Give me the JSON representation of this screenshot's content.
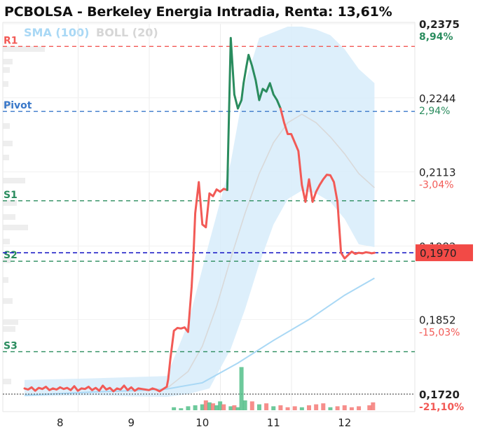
{
  "title": "PCBOLSA - Berkeley Energia Intradia, Renta: 13,61%",
  "legend": {
    "sma": "SMA (100)",
    "boll": "BOLL (20)"
  },
  "colors": {
    "up": "#2a8c5e",
    "down": "#f25a56",
    "sma": "#a9d8f5",
    "band": "#d7ecfa",
    "boll_mid": "#d9d9d9",
    "pivot": "#3a78c9",
    "current": "#2323c8"
  },
  "chart_data": {
    "type": "line",
    "title": "PCBOLSA - Berkeley Energia Intradia, Renta: 13,61%",
    "xlabel": "",
    "ylabel": "",
    "ylim": [
      0.1715,
      0.2375
    ],
    "x_ticks": [
      "8",
      "9",
      "10",
      "11",
      "12"
    ],
    "y_ticks": [
      {
        "value": 0.2375,
        "label": "0,2375",
        "pct": "8,94%",
        "pct_color": "up",
        "bold": true
      },
      {
        "value": 0.2244,
        "label": "0,2244",
        "pct": "2,94%",
        "pct_color": "up"
      },
      {
        "value": 0.2113,
        "label": "0,2113",
        "pct": "-3,04%",
        "pct_color": "down"
      },
      {
        "value": 0.1982,
        "label": "0,1982",
        "pct": "",
        "pct_color": "down"
      },
      {
        "value": 0.1852,
        "label": "0,1852",
        "pct": "-15,03%",
        "pct_color": "down"
      },
      {
        "value": 0.172,
        "label": "0,1720",
        "pct": "-21,10%",
        "pct_color": "down",
        "bold": true
      }
    ],
    "levels": [
      {
        "name": "R1",
        "value": 0.2335,
        "color": "#f25a56"
      },
      {
        "name": "Pivot",
        "value": 0.222,
        "color": "#3a78c9"
      },
      {
        "name": "S1",
        "value": 0.2062,
        "color": "#2a8c5e"
      },
      {
        "name": "S2",
        "value": 0.1955,
        "color": "#2a8c5e"
      },
      {
        "name": "S3",
        "value": 0.1795,
        "color": "#2a8c5e"
      }
    ],
    "current": {
      "value": 0.197,
      "label": "0,1970"
    },
    "baseline": 0.172,
    "price": {
      "x": [
        0.0,
        0.05,
        0.1,
        0.15,
        0.2,
        0.25,
        0.3,
        0.35,
        0.4,
        0.45,
        0.5,
        0.55,
        0.6,
        0.65,
        0.7,
        0.75,
        0.8,
        0.85,
        0.9,
        0.95,
        1.0,
        1.05,
        1.1,
        1.15,
        1.2,
        1.25,
        1.3,
        1.35,
        1.4,
        1.45,
        1.5,
        1.55,
        1.6,
        1.65,
        1.7,
        1.75,
        1.8,
        1.85,
        1.9,
        1.95,
        2.0,
        2.02,
        2.05,
        2.1,
        2.15,
        2.2,
        2.25,
        2.3,
        2.35,
        2.38,
        2.4,
        2.45,
        2.5,
        2.55,
        2.6,
        2.65,
        2.7,
        2.75,
        2.8,
        2.85,
        2.9,
        2.95,
        3.0,
        3.05,
        3.08,
        3.12,
        3.15,
        3.2,
        3.25,
        3.3,
        3.35,
        3.4,
        3.45,
        3.5,
        3.55,
        3.6,
        3.65,
        3.7,
        3.75,
        3.8,
        3.85,
        3.9,
        3.95,
        4.0,
        4.05,
        4.1,
        4.15,
        4.2,
        4.25,
        4.3,
        4.35,
        4.4,
        4.45,
        4.5,
        4.55,
        4.6,
        4.65,
        4.7,
        4.75,
        4.8,
        4.85,
        4.88,
        4.92
      ],
      "y": [
        0.173,
        0.1728,
        0.1732,
        0.1726,
        0.1731,
        0.1729,
        0.1733,
        0.1727,
        0.173,
        0.1728,
        0.1732,
        0.1729,
        0.1731,
        0.1727,
        0.1734,
        0.1726,
        0.173,
        0.1729,
        0.1733,
        0.1727,
        0.1731,
        0.1726,
        0.1735,
        0.1728,
        0.1731,
        0.1725,
        0.173,
        0.1728,
        0.1735,
        0.1727,
        0.1732,
        0.1726,
        0.173,
        0.1729,
        0.1728,
        0.1727,
        0.173,
        0.1728,
        0.1725,
        0.1729,
        0.1733,
        0.1746,
        0.1782,
        0.1832,
        0.1837,
        0.1836,
        0.1838,
        0.183,
        0.191,
        0.198,
        0.204,
        0.2095,
        0.202,
        0.2015,
        0.2075,
        0.207,
        0.2082,
        0.2078,
        0.2083,
        0.2081,
        0.235,
        0.225,
        0.2225,
        0.224,
        0.227,
        0.23,
        0.232,
        0.23,
        0.2275,
        0.224,
        0.226,
        0.2255,
        0.227,
        0.225,
        0.224,
        0.2225,
        0.22,
        0.218,
        0.218,
        0.2165,
        0.215,
        0.209,
        0.206,
        0.21,
        0.206,
        0.2078,
        0.209,
        0.21,
        0.2108,
        0.2107,
        0.2095,
        0.206,
        0.197,
        0.196,
        0.1966,
        0.1972,
        0.1968,
        0.197,
        0.1969,
        0.1971,
        0.197,
        0.1969,
        0.197
      ],
      "up_segments": [
        [
          59,
          65
        ],
        [
          65,
          75
        ]
      ]
    },
    "sma": {
      "x": [
        0.0,
        0.5,
        1.0,
        1.5,
        2.0,
        2.5,
        3.0,
        3.5,
        4.0,
        4.5,
        4.92
      ],
      "y": [
        0.1718,
        0.1721,
        0.1724,
        0.1726,
        0.1729,
        0.174,
        0.1775,
        0.1815,
        0.1852,
        0.1895,
        0.1925
      ]
    },
    "boll_mid": {
      "x": [
        2.0,
        2.3,
        2.5,
        2.7,
        2.9,
        3.1,
        3.3,
        3.5,
        3.7,
        3.9,
        4.1,
        4.3,
        4.5,
        4.7,
        4.92
      ],
      "y": [
        0.173,
        0.176,
        0.1805,
        0.1875,
        0.196,
        0.204,
        0.211,
        0.2165,
        0.22,
        0.2215,
        0.22,
        0.2175,
        0.2145,
        0.211,
        0.2085
      ]
    },
    "boll_upper": {
      "x": [
        0.0,
        1.0,
        1.5,
        2.0,
        2.3,
        2.6,
        2.9,
        3.1,
        3.3,
        3.5,
        3.7,
        3.9,
        4.1,
        4.3,
        4.5,
        4.7,
        4.92
      ],
      "y": [
        0.1745,
        0.1748,
        0.175,
        0.1752,
        0.1845,
        0.199,
        0.213,
        0.227,
        0.235,
        0.236,
        0.237,
        0.237,
        0.2365,
        0.2355,
        0.233,
        0.2295,
        0.227
      ]
    },
    "boll_lower": {
      "x": [
        4.92,
        4.7,
        4.5,
        4.3,
        4.1,
        3.9,
        3.7,
        3.5,
        3.3,
        3.1,
        2.9,
        2.6,
        2.3,
        2.0,
        1.5,
        1.0,
        0.0
      ],
      "y": [
        0.198,
        0.1985,
        0.203,
        0.206,
        0.2075,
        0.208,
        0.2065,
        0.202,
        0.195,
        0.187,
        0.18,
        0.173,
        0.172,
        0.1715,
        0.1716,
        0.1718,
        0.1716
      ]
    },
    "volume": {
      "x": [
        2.1,
        2.2,
        2.3,
        2.4,
        2.5,
        2.55,
        2.6,
        2.65,
        2.7,
        2.75,
        2.8,
        2.9,
        2.95,
        3.0,
        3.05,
        3.1,
        3.2,
        3.3,
        3.4,
        3.5,
        3.6,
        3.7,
        3.8,
        3.9,
        4.0,
        4.1,
        4.2,
        4.3,
        4.4,
        4.5,
        4.6,
        4.7,
        4.85,
        4.9
      ],
      "v": [
        0.3,
        0.2,
        0.4,
        0.5,
        0.6,
        1.0,
        0.8,
        0.7,
        0.5,
        0.9,
        0.6,
        0.4,
        0.5,
        0.3,
        4.4,
        1.0,
        0.9,
        0.6,
        0.7,
        0.4,
        0.5,
        0.3,
        0.4,
        0.3,
        0.5,
        0.6,
        0.7,
        0.3,
        0.4,
        0.5,
        0.3,
        0.4,
        0.5,
        0.8
      ],
      "dir": [
        "up",
        "up",
        "up",
        "up",
        "up",
        "down",
        "up",
        "down",
        "up",
        "up",
        "down",
        "up",
        "down",
        "up",
        "up",
        "up",
        "down",
        "up",
        "down",
        "up",
        "down",
        "down",
        "down",
        "up",
        "down",
        "down",
        "down",
        "up",
        "down",
        "down",
        "down",
        "down",
        "down",
        "down"
      ]
    }
  }
}
